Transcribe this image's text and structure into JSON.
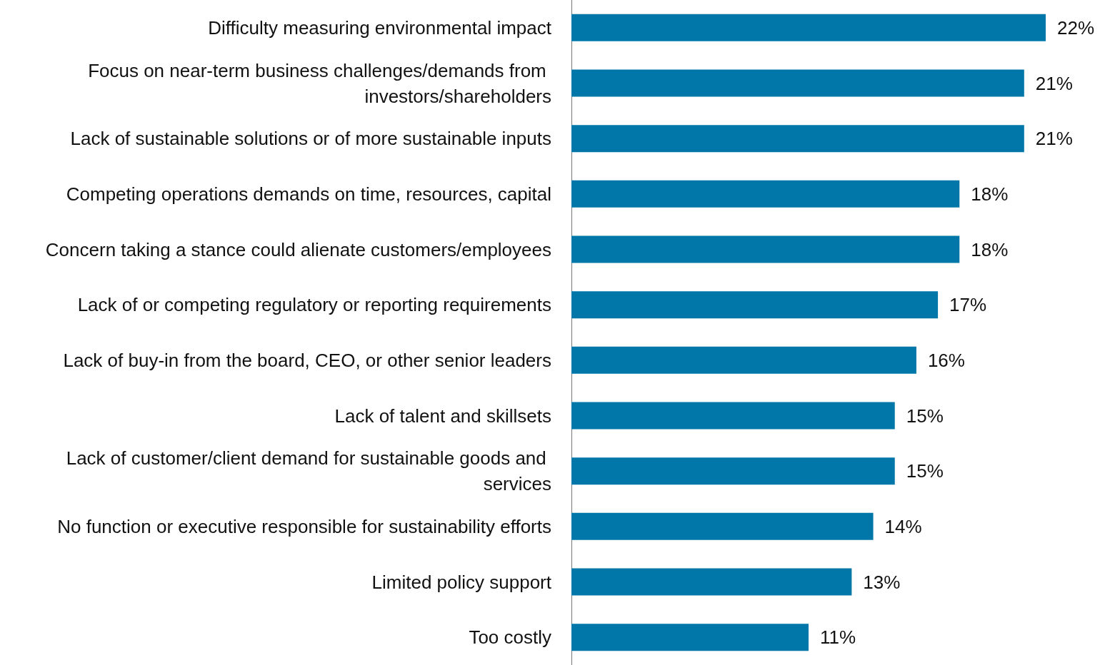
{
  "chart_data": {
    "type": "bar",
    "orientation": "horizontal",
    "categories": [
      "Difficulty measuring environmental impact",
      "Focus on near-term business challenges/demands from investors/shareholders",
      "Lack of sustainable solutions or of more sustainable inputs",
      "Competing operations demands on time, resources, capital",
      "Concern taking a stance could alienate customers/employees",
      "Lack of or competing regulatory or reporting requirements",
      "Lack of buy-in from the board, CEO, or other senior leaders",
      "Lack of talent and skillsets",
      "Lack of customer/client demand for sustainable goods and services",
      "No function or executive responsible for sustainability efforts",
      "Limited policy support",
      "Too costly"
    ],
    "values": [
      22,
      21,
      21,
      18,
      18,
      17,
      16,
      15,
      15,
      14,
      13,
      11
    ],
    "value_labels": [
      "22%",
      "21%",
      "21%",
      "18%",
      "18%",
      "17%",
      "16%",
      "15%",
      "15%",
      "14%",
      "13%",
      "11%"
    ],
    "color": "#0077a8"
  }
}
